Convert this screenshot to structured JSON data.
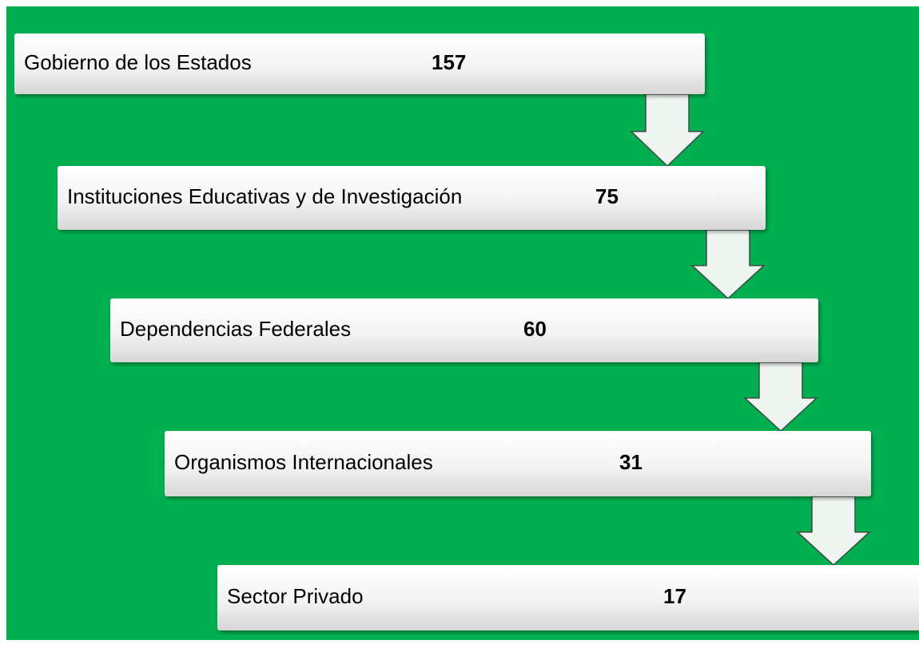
{
  "nodes": [
    {
      "label": "Gobierno de los Estados",
      "value": 157
    },
    {
      "label": "Instituciones Educativas y de Investigación",
      "value": 75
    },
    {
      "label": "Dependencias Federales",
      "value": 60
    },
    {
      "label": "Organismos Internacionales",
      "value": 31
    },
    {
      "label": "Sector Privado",
      "value": 17
    }
  ]
}
